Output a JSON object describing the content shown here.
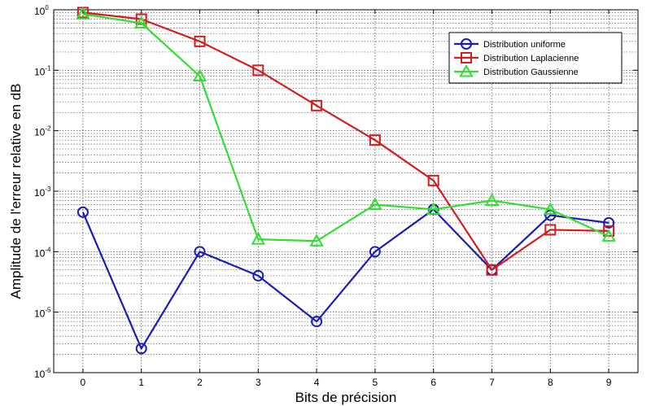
{
  "chart_data": {
    "type": "line",
    "title": "",
    "xlabel": "Bits de précision",
    "ylabel": "Amplitude de l'erreur relative en dB",
    "x": [
      0,
      1,
      2,
      3,
      4,
      5,
      6,
      7,
      8,
      9
    ],
    "xlim": [
      -0.5,
      9.5
    ],
    "ylim": [
      1e-06,
      1
    ],
    "yscale": "log",
    "grid": true,
    "legend_position": "top-right",
    "x_ticks": [
      "0",
      "1",
      "2",
      "3",
      "4",
      "5",
      "6",
      "7",
      "8",
      "9"
    ],
    "y_ticks": [
      {
        "base": "10",
        "exp": "0",
        "value": 1
      },
      {
        "base": "10",
        "exp": "-1",
        "value": 0.1
      },
      {
        "base": "10",
        "exp": "-2",
        "value": 0.01
      },
      {
        "base": "10",
        "exp": "-3",
        "value": 0.001
      },
      {
        "base": "10",
        "exp": "-4",
        "value": 0.0001
      },
      {
        "base": "10",
        "exp": "-5",
        "value": 1e-05
      },
      {
        "base": "10",
        "exp": "-6",
        "value": 1e-06
      }
    ],
    "series": [
      {
        "name": "Distribution uniforme",
        "color": "#1c1cb4",
        "marker": "circle",
        "values": [
          0.00045,
          2.5e-06,
          0.0001,
          4e-05,
          7e-06,
          0.0001,
          0.0005,
          5e-05,
          0.0004,
          0.0003
        ]
      },
      {
        "name": "Distribution Laplacienne",
        "color": "#d21e1e",
        "marker": "square",
        "values": [
          0.9,
          0.7,
          0.3,
          0.1,
          0.026,
          0.007,
          0.0015,
          5e-05,
          0.00023,
          0.00022
        ]
      },
      {
        "name": "Distribution Gaussienne",
        "color": "#33dd33",
        "marker": "triangle",
        "values": [
          0.85,
          0.6,
          0.08,
          0.00016,
          0.00015,
          0.0006,
          0.0005,
          0.0007,
          0.0005,
          0.00018
        ]
      }
    ]
  }
}
